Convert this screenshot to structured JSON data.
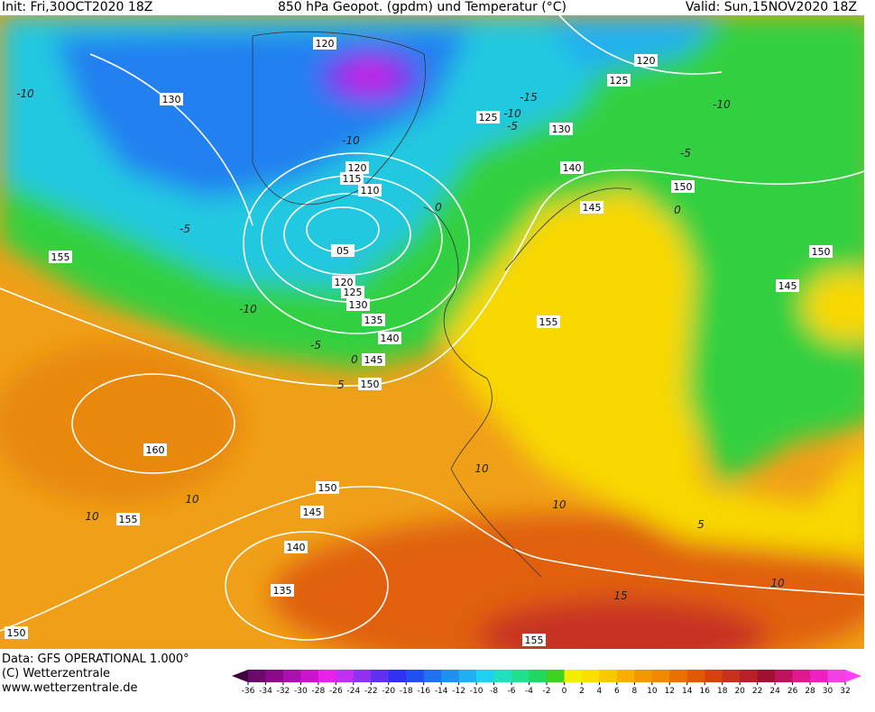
{
  "header": {
    "init": "Init: Fri,30OCT2020 18Z",
    "title": "850 hPa Geopot. (gpdm) und Temperatur (°C)",
    "valid": "Valid: Sun,15NOV2020 18Z"
  },
  "map": {
    "geopotential_labels": [
      120,
      120,
      125,
      130,
      125,
      130,
      140,
      120,
      115,
      110,
      150,
      145,
      "05",
      155,
      150,
      120,
      125,
      130,
      145,
      135,
      155,
      140,
      145,
      150,
      160,
      150,
      145,
      155,
      140,
      135,
      155,
      150
    ],
    "temperature_labels": [
      -10,
      -15,
      -10,
      -5,
      -10,
      -10,
      -5,
      0,
      0,
      -5,
      -10,
      -5,
      0,
      5,
      10,
      10,
      10,
      10,
      5,
      10,
      15
    ]
  },
  "footer": {
    "data": "Data: GFS OPERATIONAL 1.000°",
    "copyright": "(C) Wetterzentrale",
    "url": "www.wetterzentrale.de"
  },
  "colorbar": {
    "labels": [
      -36,
      -34,
      -32,
      -30,
      -28,
      -26,
      -24,
      -22,
      -20,
      -18,
      -16,
      -14,
      -12,
      -10,
      -8,
      -6,
      -4,
      -2,
      0,
      2,
      4,
      6,
      8,
      10,
      12,
      14,
      16,
      18,
      20,
      22,
      24,
      26,
      28,
      30,
      32
    ],
    "colors": [
      "#400040",
      "#6a0a6a",
      "#8a0a8a",
      "#aa10aa",
      "#cc14cc",
      "#e820e8",
      "#c030f0",
      "#9030f0",
      "#6030f0",
      "#3030f0",
      "#2050f0",
      "#2070f0",
      "#2090f0",
      "#20b0f0",
      "#20d0f0",
      "#20e0c0",
      "#20e090",
      "#20d860",
      "#40d020",
      "#f0f000",
      "#f8e000",
      "#f8c800",
      "#f8b000",
      "#f09800",
      "#f08800",
      "#e87000",
      "#e05800",
      "#d84010",
      "#c83020",
      "#b82028",
      "#a01030",
      "#c01060",
      "#e01890",
      "#f020c0",
      "#f040e0",
      "#ff40ff"
    ]
  }
}
